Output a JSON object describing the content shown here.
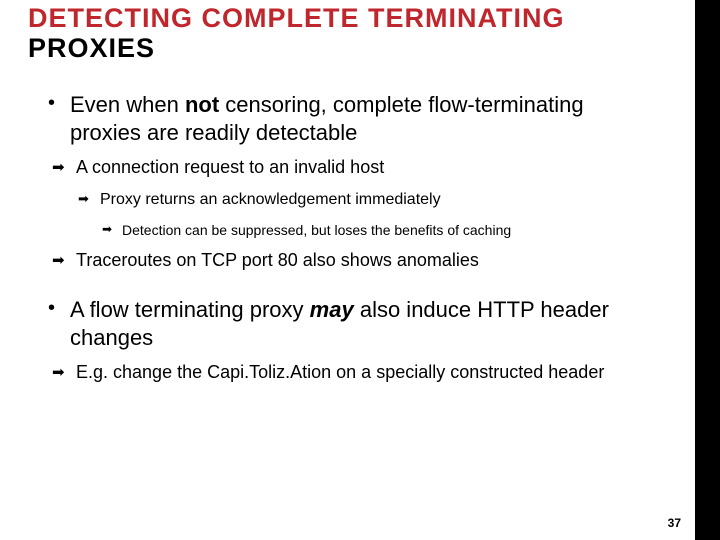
{
  "title": {
    "line1": "DETECTING COMPLETE TERMINATING",
    "line2": "PROXIES",
    "line1_color": "#c0272d",
    "line2_color": "#000000",
    "fontsize": 27
  },
  "bullets": {
    "b1_pre": "Even when ",
    "b1_bold": "not",
    "b1_post": " censoring, complete flow-terminating proxies are readily detectable",
    "b1a": "A connection request to an invalid host",
    "b1a_i": "Proxy returns an acknowledgement immediately",
    "b1a_i_x": "Detection can be suppressed, but loses the benefits of caching",
    "b1b": "Traceroutes on TCP port 80 also shows anomalies",
    "b2_pre": "A flow terminating proxy ",
    "b2_bold": "may",
    "b2_post": " also induce HTTP header changes",
    "b2a": "E.g. change the Capi.Toliz.Ation on a specially constructed header"
  },
  "page_number": "37",
  "styling": {
    "slide_width": 695,
    "slide_height": 540,
    "right_bar_width": 25,
    "background": "#ffffff",
    "right_bar_color": "#000000",
    "lvl1_fontsize": 22,
    "lvl2_fontsize": 18,
    "lvl3_fontsize": 16,
    "lvl4_fontsize": 14,
    "arrow_glyph": "➡",
    "dot_glyph": "•",
    "text_color": "#000000"
  }
}
